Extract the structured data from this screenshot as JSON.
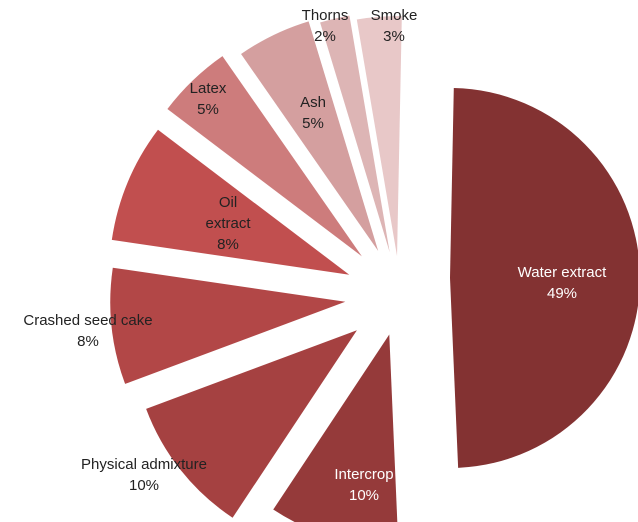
{
  "chart_data": {
    "type": "pie",
    "exploded": true,
    "title": "",
    "slices": [
      {
        "category": "Water extract",
        "value": 49,
        "label": "49%",
        "color": "#833232"
      },
      {
        "category": "Intercrop",
        "value": 10,
        "label": "10%",
        "color": "#953A3A"
      },
      {
        "category": "Physical admixture",
        "value": 10,
        "label": "10%",
        "color": "#A54141"
      },
      {
        "category": "Crashed seed cake",
        "value": 8,
        "label": "8%",
        "color": "#B24747"
      },
      {
        "category": "Oil extract",
        "value": 8,
        "label": "8%",
        "color": "#C14F4F"
      },
      {
        "category": "Latex",
        "value": 5,
        "label": "5%",
        "color": "#CD7C7C"
      },
      {
        "category": "Ash",
        "value": 5,
        "label": "5%",
        "color": "#D49F9F"
      },
      {
        "category": "Thorns",
        "value": 2,
        "label": "2%",
        "color": "#DDB5B5"
      },
      {
        "category": "Smoke",
        "value": 3,
        "label": "3%",
        "color": "#E8C8C8"
      }
    ]
  }
}
